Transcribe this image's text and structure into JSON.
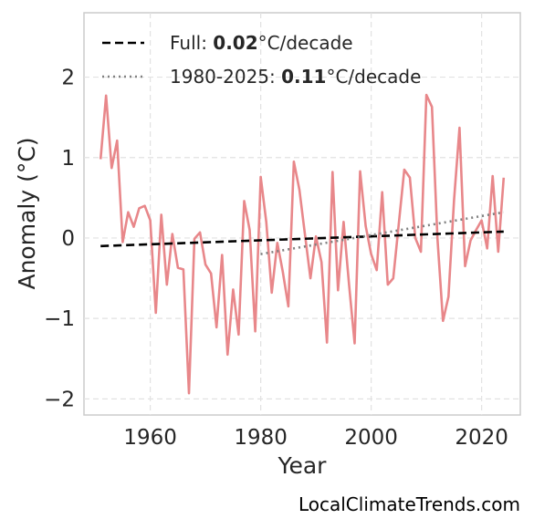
{
  "chart_data": {
    "type": "line",
    "xlabel": "Year",
    "ylabel": "Anomaly (°C)",
    "xlim": [
      1948,
      2027
    ],
    "ylim": [
      -2.2,
      2.8
    ],
    "x_ticks": [
      1960,
      1980,
      2000,
      2020
    ],
    "y_ticks": [
      -2,
      -1,
      0,
      1,
      2
    ],
    "x_tick_labels": [
      "1960",
      "1980",
      "2000",
      "2020"
    ],
    "y_tick_labels": [
      "−2",
      "−1",
      "0",
      "1",
      "2"
    ],
    "grid": true,
    "legend_position": "top-left",
    "series": [
      {
        "color": "#e8878a",
        "style": "solid",
        "x": [
          1951,
          1952,
          1953,
          1954,
          1955,
          1956,
          1957,
          1958,
          1959,
          1960,
          1961,
          1962,
          1963,
          1964,
          1965,
          1966,
          1967,
          1968,
          1969,
          1970,
          1971,
          1972,
          1973,
          1974,
          1975,
          1976,
          1977,
          1978,
          1979,
          1980,
          1981,
          1982,
          1983,
          1984,
          1985,
          1986,
          1987,
          1988,
          1989,
          1990,
          1991,
          1992,
          1993,
          1994,
          1995,
          1996,
          1997,
          1998,
          1999,
          2000,
          2001,
          2002,
          2003,
          2004,
          2005,
          2006,
          2007,
          2008,
          2009,
          2010,
          2011,
          2012,
          2013,
          2014,
          2015,
          2016,
          2017,
          2018,
          2019,
          2020,
          2021,
          2022,
          2023,
          2024
        ],
        "y": [
          0.98,
          1.77,
          0.87,
          1.21,
          -0.05,
          0.32,
          0.14,
          0.37,
          0.4,
          0.22,
          -0.93,
          0.29,
          -0.58,
          0.05,
          -0.37,
          -0.39,
          -1.93,
          -0.01,
          0.07,
          -0.33,
          -0.44,
          -1.11,
          -0.21,
          -1.45,
          -0.64,
          -1.2,
          0.46,
          0.1,
          -1.16,
          0.76,
          0.2,
          -0.68,
          -0.06,
          -0.42,
          -0.85,
          0.95,
          0.6,
          0.05,
          -0.5,
          0.02,
          -0.3,
          -1.3,
          0.82,
          -0.65,
          0.2,
          -0.58,
          -1.31,
          0.83,
          0.15,
          -0.2,
          -0.4,
          0.57,
          -0.58,
          -0.5,
          0.18,
          0.85,
          0.75,
          0.0,
          -0.17,
          1.78,
          1.63,
          0.0,
          -1.03,
          -0.73,
          0.47,
          1.37,
          -0.35,
          -0.03,
          0.1,
          0.22,
          -0.13,
          0.77,
          -0.17,
          0.75
        ]
      },
      {
        "name_prefix": "Full: ",
        "name_value": "0.02",
        "name_suffix": "°C/decade",
        "color": "#000000",
        "style": "dashed",
        "x": [
          1951,
          2024
        ],
        "y": [
          -0.1,
          0.08
        ]
      },
      {
        "name_prefix": "1980-2025: ",
        "name_value": "0.11",
        "name_suffix": "°C/decade",
        "color": "#808080",
        "style": "dotted",
        "x": [
          1980,
          2024
        ],
        "y": [
          -0.2,
          0.32
        ]
      }
    ]
  },
  "credit": "LocalClimateTrends.com"
}
